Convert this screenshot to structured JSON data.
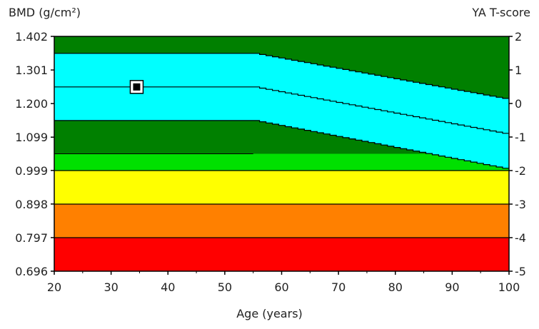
{
  "chart_data": {
    "type": "area",
    "ylabel": "BMD (g/cm²)",
    "y2label": "YA T-score",
    "xlabel": "Age (years)",
    "xlim": [
      20,
      100
    ],
    "x_ticks": [
      "20",
      "30",
      "40",
      "50",
      "60",
      "70",
      "80",
      "90",
      "100"
    ],
    "ylim": [
      0.696,
      1.402
    ],
    "y_ticks": [
      "1.402",
      "1.301",
      "1.200",
      "1.099",
      "0.999",
      "0.898",
      "0.797",
      "0.696"
    ],
    "y2_ticks": [
      "2",
      "1",
      "0",
      "-1",
      "-2",
      "-3",
      "-4",
      "-5"
    ],
    "bands_tscore": [
      {
        "from": 1,
        "to": 2,
        "color": "#008000"
      },
      {
        "from": -1,
        "to": 1,
        "color": "#00ffff"
      },
      {
        "from": -1.5,
        "to": -1,
        "color": "#008000"
      },
      {
        "from": -2,
        "to": -1.5,
        "color": "#00e000"
      },
      {
        "from": -3,
        "to": -2,
        "color": "#ffff00"
      },
      {
        "from": -4,
        "to": -3,
        "color": "#ff8000"
      },
      {
        "from": -5,
        "to": -4,
        "color": "#ff0000"
      }
    ],
    "reference_curves": [
      {
        "tscore_offset": 1,
        "x": [
          20,
          55,
          100
        ],
        "y": [
          1.351,
          1.351,
          1.212
        ]
      },
      {
        "tscore_offset": 0,
        "x": [
          20,
          55,
          100
        ],
        "y": [
          1.25,
          1.25,
          1.107
        ]
      },
      {
        "tscore_offset": -1,
        "x": [
          20,
          55,
          100
        ],
        "y": [
          1.149,
          1.149,
          1.002
        ]
      }
    ],
    "points": [
      {
        "x": 34.5,
        "y": 1.25
      }
    ],
    "grid": false,
    "legend": "none"
  }
}
